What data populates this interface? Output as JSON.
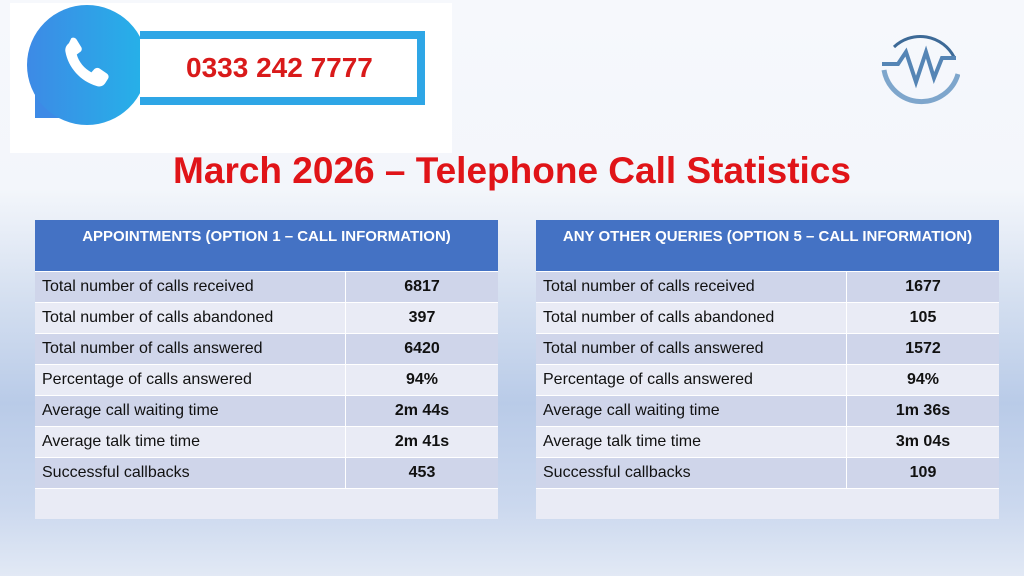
{
  "banner": {
    "phone_number": "0333 242 7777",
    "icon": "phone-icon"
  },
  "logo": {
    "icon": "company-logo-icon"
  },
  "title": "March 2026 – Telephone Call Statistics",
  "colors": {
    "title": "#e01418",
    "header": "#4472c4",
    "row_dark": "#cfd5ea",
    "row_light": "#e9ebf5"
  },
  "tables": [
    {
      "header": "APPOINTMENTS (OPTION 1 – CALL INFORMATION)",
      "rows": [
        {
          "label": "Total number of calls received",
          "value": "6817"
        },
        {
          "label": "Total number of calls abandoned",
          "value": "397"
        },
        {
          "label": "Total number of calls answered",
          "value": "6420"
        },
        {
          "label": "Percentage of calls answered",
          "value": "94%"
        },
        {
          "label": "Average call waiting time",
          "value": "2m 44s"
        },
        {
          "label": "Average talk time time",
          "value": "2m 41s"
        },
        {
          "label": "Successful callbacks",
          "value": "453"
        }
      ]
    },
    {
      "header": "ANY OTHER QUERIES (OPTION 5 – CALL INFORMATION)",
      "rows": [
        {
          "label": "Total number of calls received",
          "value": "1677"
        },
        {
          "label": "Total number of calls abandoned",
          "value": "105"
        },
        {
          "label": "Total number of calls answered",
          "value": "1572"
        },
        {
          "label": "Percentage of calls answered",
          "value": "94%"
        },
        {
          "label": "Average call waiting time",
          "value": "1m 36s"
        },
        {
          "label": "Average talk time time",
          "value": "3m 04s"
        },
        {
          "label": "Successful callbacks",
          "value": "109"
        }
      ]
    }
  ]
}
